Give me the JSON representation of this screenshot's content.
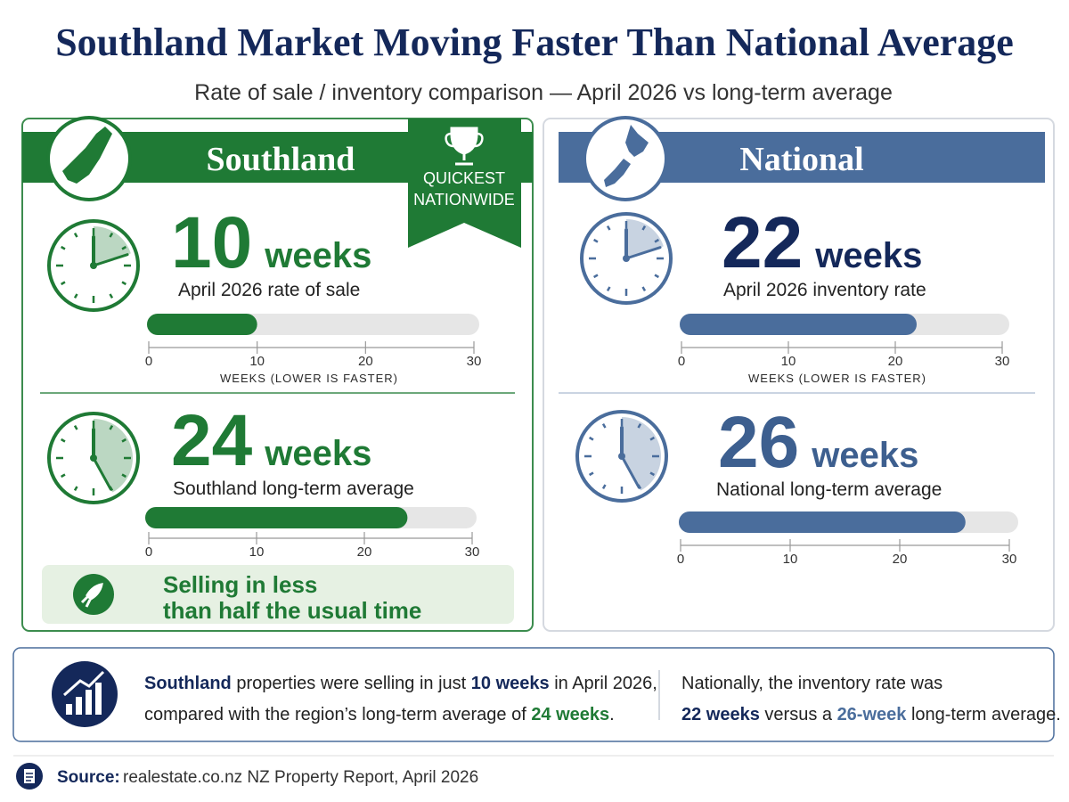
{
  "header": {
    "title": "Southland Market Moving Faster Than National Average",
    "subtitle": "Rate of sale / inventory comparison — April 2026 vs long-term average"
  },
  "panels": [
    {
      "title": "Southland",
      "badge": [
        "QUICKEST",
        "NATIONWIDE"
      ],
      "callout": [
        "Selling in less",
        "than half the usual time"
      ]
    },
    {
      "title": "National"
    }
  ],
  "chart_data": [
    {
      "type": "bar",
      "values": [
        10
      ],
      "unit": "weeks",
      "label": "April 2026 rate of sale",
      "color": "#1f7a35",
      "xlim": [
        0,
        30
      ],
      "xticks": [
        0,
        10,
        20,
        30
      ],
      "xlabel": "WEEKS (LOWER IS FASTER)"
    },
    {
      "type": "bar",
      "values": [
        24
      ],
      "unit": "weeks",
      "label": "Southland long-term average",
      "color": "#1f7a35",
      "xlim": [
        0,
        30
      ],
      "xticks": [
        0,
        10,
        20,
        30
      ]
    },
    {
      "type": "bar",
      "values": [
        22
      ],
      "unit": "weeks",
      "label": "April 2026 inventory rate",
      "color": "#4a6d9c",
      "xlim": [
        0,
        30
      ],
      "xticks": [
        0,
        10,
        20,
        30
      ],
      "xlabel": "WEEKS (LOWER IS FASTER)"
    },
    {
      "type": "bar",
      "values": [
        26
      ],
      "unit": "weeks",
      "label": "National long-term average",
      "color": "#4a6d9c",
      "xlim": [
        0,
        30
      ],
      "xticks": [
        0,
        10,
        20,
        30
      ]
    }
  ],
  "summary": {
    "left": [
      [
        "Southland",
        " properties were selling in just ",
        "10 weeks",
        " in April 2026,"
      ],
      [
        "compared with the region’s long-term average of ",
        "24 weeks",
        "."
      ]
    ],
    "right": [
      [
        "Nationally, the inventory rate was"
      ],
      [
        "22 weeks",
        " versus a ",
        "26-week",
        " long-term average."
      ]
    ]
  },
  "source": {
    "label": "Source:",
    "text": "realestate.co.nz NZ Property Report, April 2026"
  }
}
